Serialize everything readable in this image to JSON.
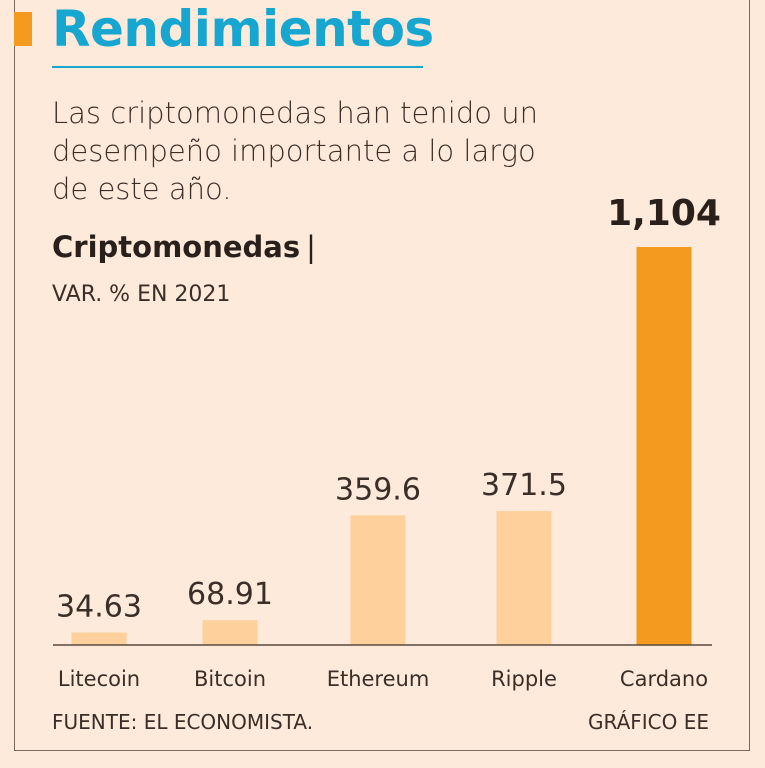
{
  "header": {
    "title": "Rendimientos",
    "subtitle": "Las criptomonedas han tenido un desempeño importante a lo largo de este año."
  },
  "chart_data": {
    "type": "bar",
    "title": "Criptomonedas",
    "title_separator": "|",
    "ylabel": "VAR. % EN  2021",
    "categories": [
      "Litecoin",
      "Bitcoin",
      "Ethereum",
      "Ripple",
      "Cardano"
    ],
    "values": [
      34.63,
      68.91,
      359.6,
      371.5,
      1104
    ],
    "value_labels": [
      "34.63",
      "68.91",
      "359.6",
      "371.5",
      "1,104"
    ],
    "highlight_index": 4,
    "colors": {
      "normal": "#fdd09c",
      "highlight": "#f49a1f"
    },
    "ylim": [
      0,
      1104
    ],
    "grid": false
  },
  "footer": {
    "source": "FUENTE: EL ECONOMISTA.",
    "credit": "GRÁFICO EE"
  },
  "colors": {
    "title": "#17a6cf",
    "accent": "#f49a1f",
    "background": "#fdeadb"
  }
}
